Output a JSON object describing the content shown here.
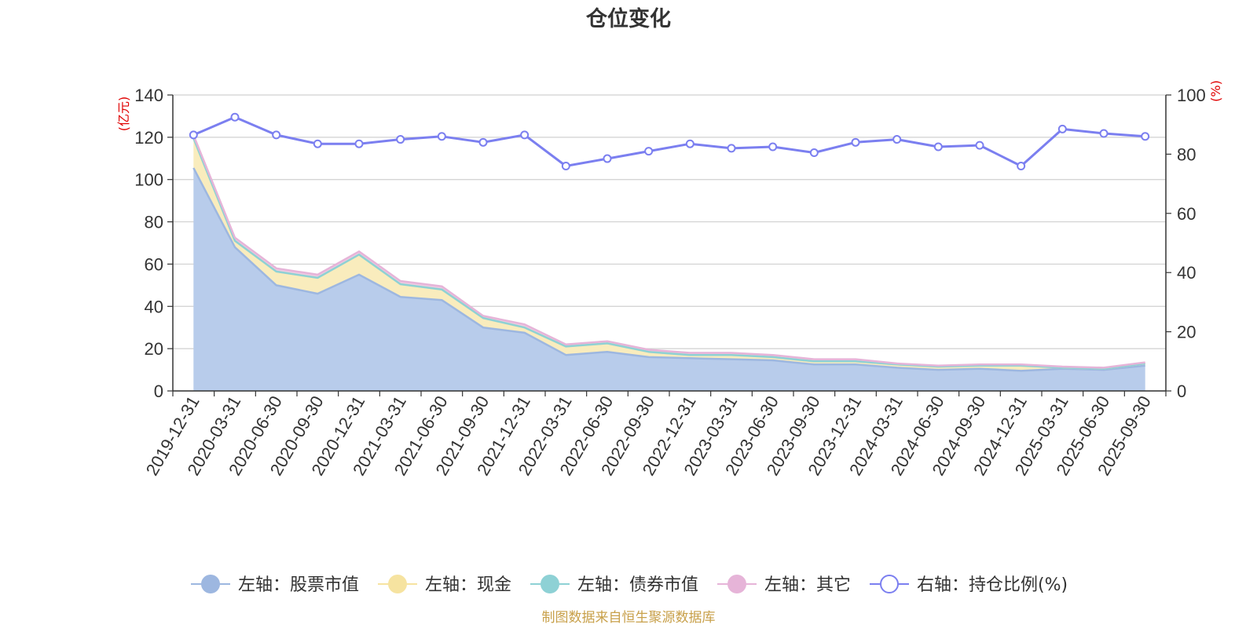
{
  "chart_data": {
    "type": "area",
    "title": "仓位变化",
    "left_axis_unit": "(亿元)",
    "right_axis_unit": "(%)",
    "left_ylim": [
      0,
      140
    ],
    "left_ticks": [
      0,
      20,
      40,
      60,
      80,
      100,
      120,
      140
    ],
    "right_ylim": [
      0,
      100
    ],
    "right_ticks": [
      0,
      20,
      40,
      60,
      80,
      100
    ],
    "grid": true,
    "legend_position": "bottom",
    "x": [
      "2019-12-31",
      "2020-03-31",
      "2020-06-30",
      "2020-09-30",
      "2020-12-31",
      "2021-03-31",
      "2021-06-30",
      "2021-09-30",
      "2021-12-31",
      "2022-03-31",
      "2022-06-30",
      "2022-09-30",
      "2022-12-31",
      "2023-03-31",
      "2023-06-30",
      "2023-09-30",
      "2023-12-31",
      "2024-03-31",
      "2024-06-30",
      "2024-09-30",
      "2024-12-31",
      "2025-03-31",
      "2025-06-30",
      "2025-09-30"
    ],
    "series": [
      {
        "name": "左轴：股票市值",
        "axis": "left",
        "kind": "stacked-area",
        "color": "#9db7e0",
        "fill": "#b8cceb",
        "values": [
          105.5,
          68,
          50,
          46,
          55,
          44.5,
          43,
          30,
          27.5,
          17,
          18.5,
          16,
          15.5,
          15,
          14.5,
          12.5,
          12.5,
          11,
          10,
          10.5,
          9.5,
          10.5,
          10,
          12
        ]
      },
      {
        "name": "左轴：现金",
        "axis": "left",
        "kind": "stacked-area",
        "color": "#f6e3a0",
        "fill": "#f9ecbd",
        "values": [
          14,
          3,
          6.5,
          7.5,
          9.5,
          6,
          5,
          4.5,
          2.5,
          4,
          4,
          2.5,
          1.5,
          2,
          1.5,
          1.5,
          1.5,
          1.5,
          1.5,
          1.5,
          2.5,
          0.5,
          0.5,
          1
        ]
      },
      {
        "name": "左轴：债券市值",
        "axis": "left",
        "kind": "stacked-area",
        "color": "#8ed1d5",
        "fill": "#a9dde0",
        "values": [
          0,
          0,
          0,
          0,
          0,
          0,
          0,
          0,
          0,
          0,
          0,
          0,
          0,
          0,
          0,
          0,
          0,
          0,
          0,
          0,
          0,
          0,
          0,
          0
        ]
      },
      {
        "name": "左轴：其它",
        "axis": "left",
        "kind": "stacked-area",
        "color": "#e6b4d8",
        "fill": "#efcbe5",
        "values": [
          1.5,
          1.5,
          1.5,
          1.5,
          1.5,
          1.5,
          1.5,
          1,
          1.5,
          1,
          1,
          1,
          1,
          1,
          1,
          1,
          1,
          0.5,
          0.5,
          0.5,
          0.5,
          0.5,
          0.5,
          0.5
        ]
      },
      {
        "name": "右轴：持仓比例(%)",
        "axis": "right",
        "kind": "line",
        "color": "#7b7ff0",
        "values": [
          86.5,
          92.5,
          86.5,
          83.5,
          83.5,
          85,
          86,
          84,
          86.5,
          76,
          78.5,
          81,
          83.5,
          82,
          82.5,
          80.5,
          84,
          85,
          82.5,
          83,
          76,
          88.5,
          87,
          86
        ]
      }
    ]
  },
  "source_text": "制图数据来自恒生聚源数据库"
}
